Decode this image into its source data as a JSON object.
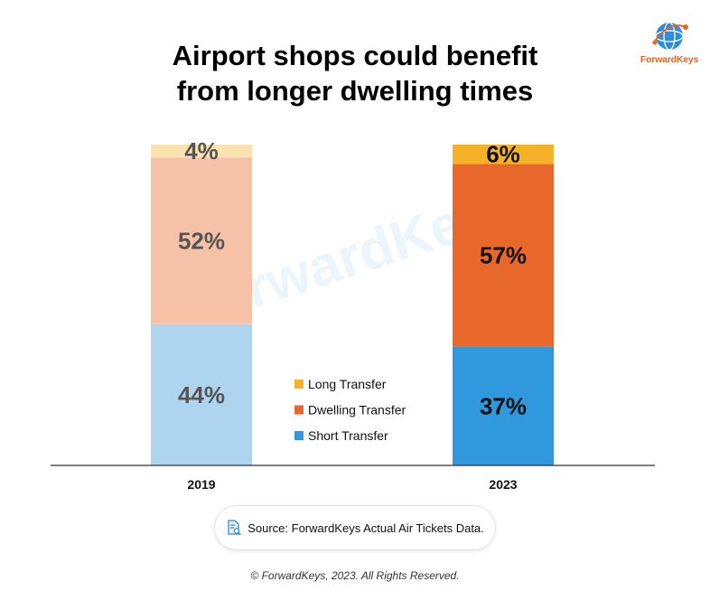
{
  "header": {
    "title_line1": "Airport shops could benefit",
    "title_line2": "from longer dwelling times"
  },
  "logo": {
    "text": "ForwardKeys",
    "icon": "globe-icon"
  },
  "watermark": "ForwardKeys",
  "source": {
    "icon": "document-search-icon",
    "text": "Source: ForwardKeys Actual Air Tickets Data."
  },
  "copyright": "© ForwardKeys, 2023. All Rights Reserved.",
  "chart_data": {
    "type": "bar",
    "stacked": true,
    "categories": [
      "2019",
      "2023"
    ],
    "ylim": [
      0,
      100
    ],
    "series": [
      {
        "name": "Short Transfer",
        "values": [
          44,
          37
        ],
        "labels": [
          "44%",
          "37%"
        ],
        "colors": [
          "#aed4ef",
          "#3099de"
        ]
      },
      {
        "name": "Dwelling Transfer",
        "values": [
          52,
          57
        ],
        "labels": [
          "52%",
          "57%"
        ],
        "colors": [
          "#f5c2a8",
          "#e8672b"
        ]
      },
      {
        "name": "Long Transfer",
        "values": [
          4,
          6
        ],
        "labels": [
          "4%",
          "6%"
        ],
        "colors": [
          "#fbe3b0",
          "#f5b127"
        ]
      }
    ],
    "label_colors": [
      "#555555",
      "#111111"
    ],
    "legend": {
      "placement": "center",
      "items": [
        {
          "name": "Long Transfer",
          "color": "#f5b127"
        },
        {
          "name": "Dwelling Transfer",
          "color": "#e8672b"
        },
        {
          "name": "Short Transfer",
          "color": "#3099de"
        }
      ]
    },
    "grid": false
  }
}
